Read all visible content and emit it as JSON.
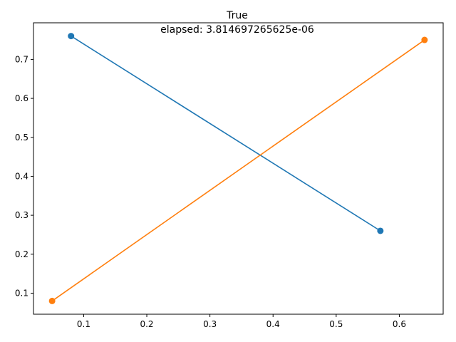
{
  "chart_data": {
    "type": "line",
    "title": "True",
    "subtitle": "elapsed: 3.814697265625e-06",
    "xlabel": "",
    "ylabel": "",
    "xlim": [
      0.0205,
      0.6695
    ],
    "ylim": [
      0.046,
      0.794
    ],
    "x_ticks": [
      0.1,
      0.2,
      0.3,
      0.4,
      0.5,
      0.6
    ],
    "x_tick_labels": [
      "0.1",
      "0.2",
      "0.3",
      "0.4",
      "0.5",
      "0.6"
    ],
    "y_ticks": [
      0.1,
      0.2,
      0.3,
      0.4,
      0.5,
      0.6,
      0.7
    ],
    "y_tick_labels": [
      "0.1",
      "0.2",
      "0.3",
      "0.4",
      "0.5",
      "0.6",
      "0.7"
    ],
    "grid": false,
    "series": [
      {
        "color": "#1f77b4",
        "x": [
          0.08,
          0.57
        ],
        "y": [
          0.76,
          0.26
        ],
        "markers": true
      },
      {
        "color": "#ff7f0e",
        "x": [
          0.05,
          0.64
        ],
        "y": [
          0.08,
          0.75
        ],
        "markers": true
      }
    ]
  }
}
